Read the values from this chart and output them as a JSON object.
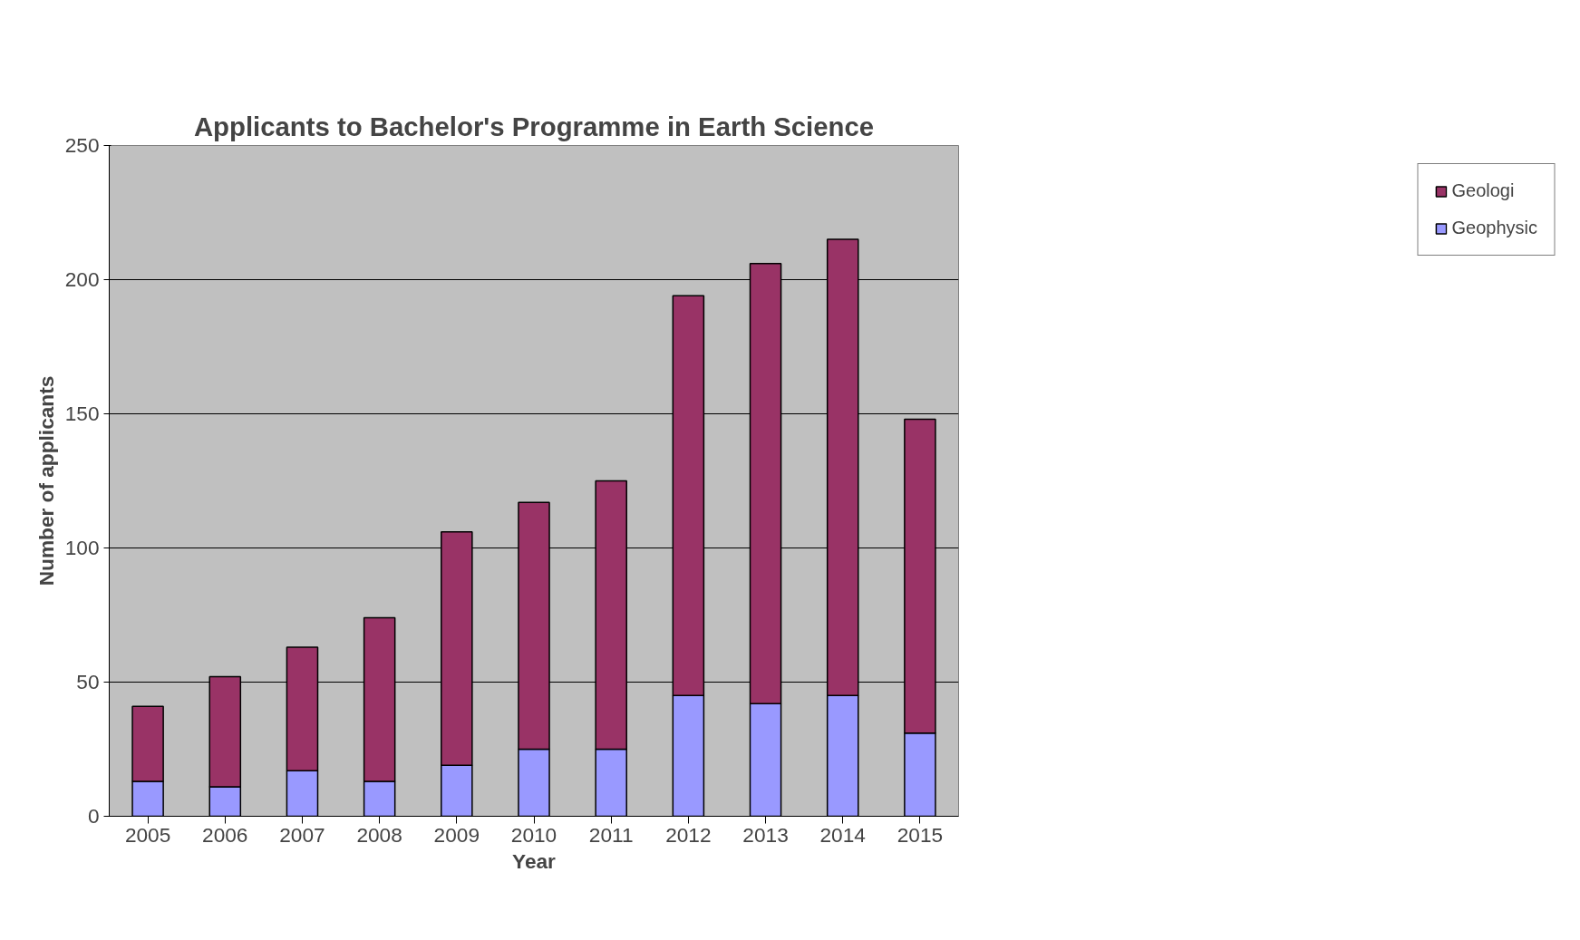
{
  "chart_data": {
    "type": "bar",
    "title": "Applicants to Bachelor's Programme in Earth Science",
    "xlabel": "Year",
    "ylabel": "Number of applicants",
    "categories": [
      "2005",
      "2006",
      "2007",
      "2008",
      "2009",
      "2010",
      "2011",
      "2012",
      "2013",
      "2014",
      "2015"
    ],
    "stacked": true,
    "series": [
      {
        "name": "Geophysic",
        "color": "#9999ff",
        "values": [
          13,
          11,
          17,
          13,
          19,
          25,
          25,
          45,
          42,
          45,
          31
        ]
      },
      {
        "name": "Geologi",
        "color": "#993366",
        "values": [
          28,
          41,
          46,
          61,
          87,
          92,
          100,
          149,
          164,
          170,
          117
        ]
      }
    ],
    "ylim": [
      0,
      250
    ],
    "yticks": [
      0,
      50,
      100,
      150,
      200,
      250
    ],
    "grid": "y",
    "legend": "right"
  }
}
